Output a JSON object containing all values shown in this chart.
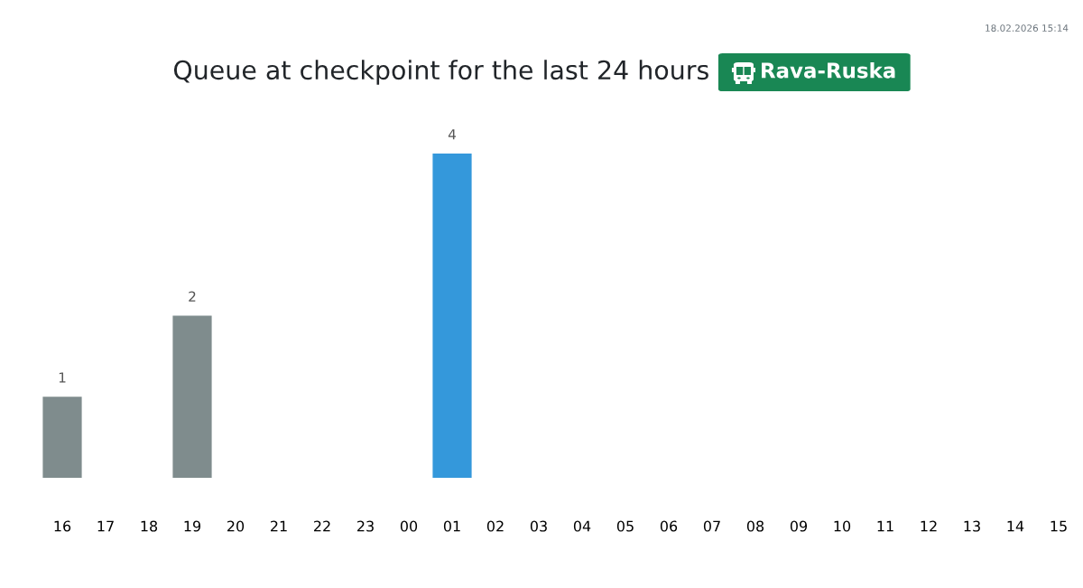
{
  "chart_data": {
    "type": "bar",
    "title": "Queue at checkpoint for the last 24 hours",
    "subtitle": "Rava-Ruska",
    "annotations": [
      "18.02.2026 15:14"
    ],
    "categories": [
      "16",
      "17",
      "18",
      "19",
      "20",
      "21",
      "22",
      "23",
      "00",
      "01",
      "02",
      "03",
      "04",
      "05",
      "06",
      "07",
      "08",
      "09",
      "10",
      "11",
      "12",
      "13",
      "14",
      "15"
    ],
    "values": [
      1,
      null,
      null,
      2,
      null,
      null,
      null,
      null,
      null,
      4,
      null,
      null,
      null,
      null,
      null,
      null,
      null,
      null,
      null,
      null,
      null,
      null,
      null,
      null
    ],
    "colors": [
      "#7f8c8d",
      "#7f8c8d",
      "#7f8c8d",
      "#7f8c8d",
      "#7f8c8d",
      "#7f8c8d",
      "#7f8c8d",
      "#7f8c8d",
      "#7f8c8d",
      "#3498db",
      "#7f8c8d",
      "#7f8c8d",
      "#7f8c8d",
      "#7f8c8d",
      "#7f8c8d",
      "#7f8c8d",
      "#7f8c8d",
      "#7f8c8d",
      "#7f8c8d",
      "#7f8c8d",
      "#7f8c8d",
      "#7f8c8d",
      "#7f8c8d",
      "#7f8c8d"
    ],
    "data_labels": true
  }
}
